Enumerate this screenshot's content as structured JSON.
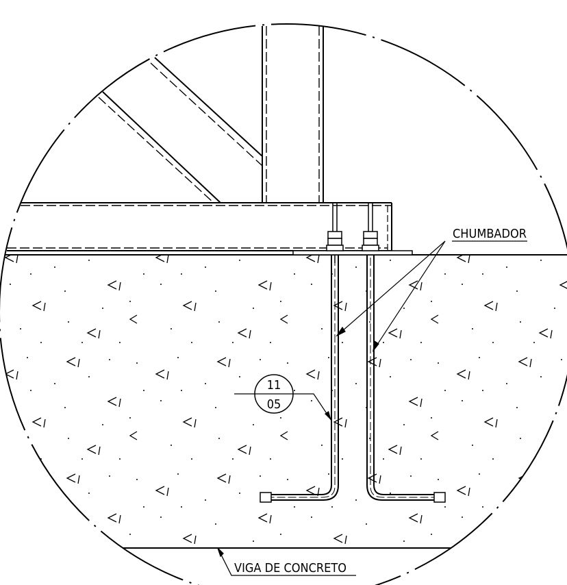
{
  "labels": {
    "anchor": "CHUMBADOR",
    "beam": "VIGA DE CONCRETO",
    "detail_top": "11",
    "detail_bottom": "05"
  },
  "colors": {
    "line": "#000000",
    "background": "#ffffff"
  }
}
